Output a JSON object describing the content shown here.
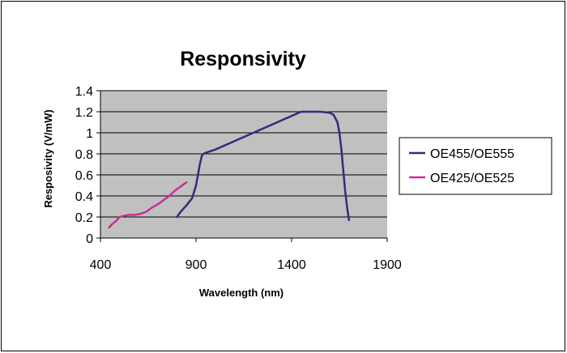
{
  "chart_data": {
    "type": "line",
    "title": "Responsivity",
    "xlabel": "Wavelength (nm)",
    "ylabel": "Resposivity (V/mW)",
    "xlim": [
      400,
      1900
    ],
    "ylim": [
      0,
      1.4
    ],
    "x_ticks": [
      "400",
      "900",
      "1400",
      "1900"
    ],
    "y_ticks": [
      "0",
      "0.2",
      "0.4",
      "0.6",
      "0.8",
      "1",
      "1.2",
      "1.4"
    ],
    "x_tick_values": [
      400,
      900,
      1400,
      1900
    ],
    "y_tick_values": [
      0,
      0.2,
      0.4,
      0.6,
      0.8,
      1.0,
      1.2,
      1.4
    ],
    "grid": true,
    "plot_background": "#c0c0c0",
    "legend_position": "right",
    "series": [
      {
        "name": "OE455/OE555",
        "color": "#2e2e7e",
        "x": [
          800,
          820,
          850,
          880,
          900,
          910,
          920,
          930,
          940,
          950,
          1000,
          1100,
          1200,
          1300,
          1350,
          1400,
          1450,
          1500,
          1550,
          1600,
          1620,
          1640,
          1650,
          1660,
          1670,
          1680,
          1690,
          1700
        ],
        "y": [
          0.2,
          0.25,
          0.31,
          0.38,
          0.5,
          0.6,
          0.7,
          0.78,
          0.8,
          0.81,
          0.84,
          0.92,
          1.0,
          1.08,
          1.12,
          1.16,
          1.2,
          1.2,
          1.2,
          1.19,
          1.17,
          1.1,
          1.0,
          0.85,
          0.65,
          0.45,
          0.3,
          0.17
        ]
      },
      {
        "name": "OE425/OE525",
        "color": "#cc2c95",
        "x": [
          445,
          460,
          480,
          500,
          520,
          550,
          580,
          610,
          640,
          670,
          700,
          730,
          760,
          790,
          820,
          850
        ],
        "y": [
          0.1,
          0.13,
          0.16,
          0.2,
          0.21,
          0.22,
          0.22,
          0.23,
          0.25,
          0.29,
          0.32,
          0.36,
          0.4,
          0.45,
          0.49,
          0.53
        ]
      }
    ]
  }
}
